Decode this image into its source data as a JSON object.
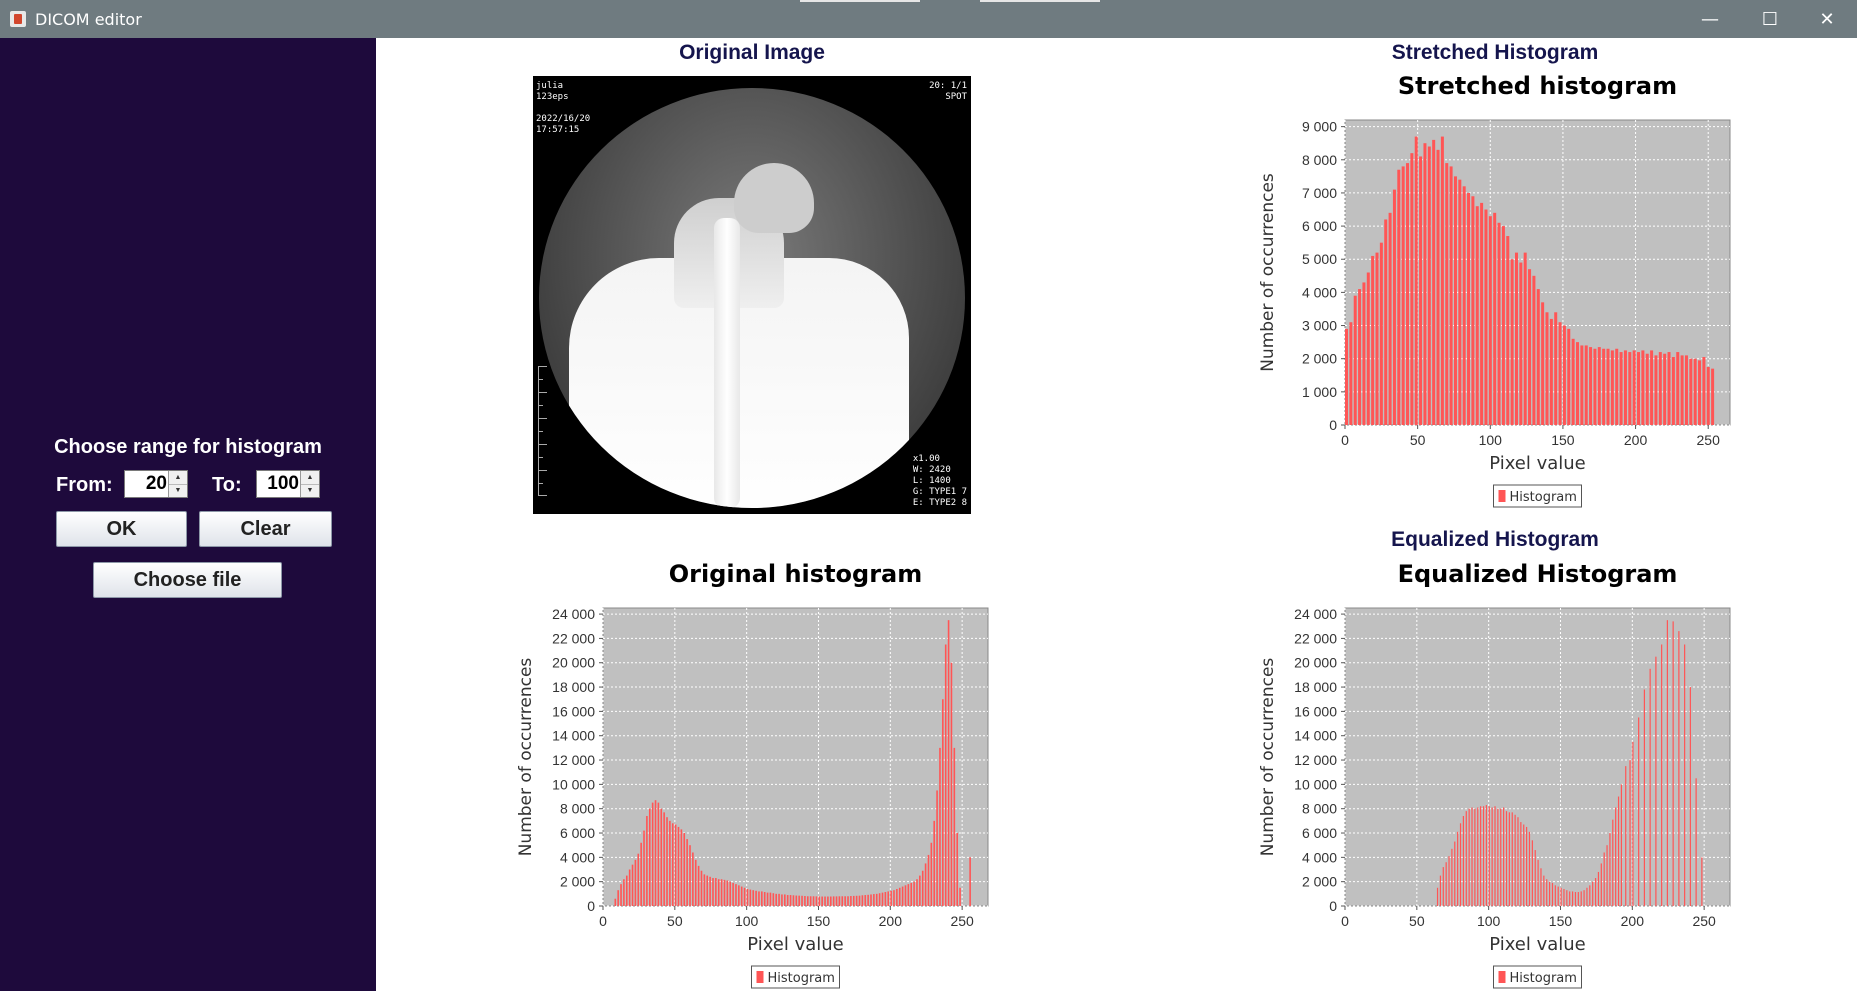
{
  "window": {
    "title": "DICOM editor",
    "minimize_glyph": "—",
    "maximize_glyph": "☐",
    "close_glyph": "✕",
    "icon": "java-cup-icon"
  },
  "sidebar": {
    "range_title": "Choose range for histogram",
    "from_label": "From:",
    "from_value": "20",
    "to_label": "To:",
    "to_value": "100",
    "ok_label": "OK",
    "clear_label": "Clear",
    "choose_file_label": "Choose file",
    "background_color": "#1e0a3c"
  },
  "sections": {
    "original_image": "Original Image",
    "stretched": "Stretched Histogram",
    "equalized": "Equalized Histogram"
  },
  "image": {
    "top_left": "julia\n123eps\n\n2022/16/20\n17:57:15",
    "top_right": "20: 1/1\nSPOT",
    "bottom_right": "x1.00\nW: 2420\nL: 1400\nG: TYPE1 7\nE: TYPE2 8"
  },
  "chart_data": [
    {
      "id": "stretched",
      "type": "bar",
      "title": "Stretched histogram",
      "xlabel": "Pixel value",
      "ylabel": "Number of occurrences",
      "xlim": [
        0,
        265
      ],
      "ylim": [
        0,
        9200
      ],
      "xticks": [
        0,
        50,
        100,
        150,
        200,
        250
      ],
      "xtick_labels": [
        "0",
        "50",
        "100",
        "150",
        "200",
        "250"
      ],
      "yticks": [
        0,
        1000,
        2000,
        3000,
        4000,
        5000,
        6000,
        7000,
        8000,
        9000
      ],
      "ytick_labels": [
        "0",
        "1 000",
        "2 000",
        "3 000",
        "4 000",
        "5 000",
        "6 000",
        "7 000",
        "8 000",
        "9 000"
      ],
      "legend": "Histogram",
      "legend_position": "bottom",
      "grid": true,
      "bar_color": "#ff5555",
      "plot_bg": "#c0c0c0",
      "bar_width": 3,
      "points": [
        [
          0,
          2900
        ],
        [
          3,
          3100
        ],
        [
          6,
          3900
        ],
        [
          9,
          4100
        ],
        [
          12,
          4300
        ],
        [
          15,
          4600
        ],
        [
          18,
          5100
        ],
        [
          21,
          5200
        ],
        [
          24,
          5500
        ],
        [
          27,
          6200
        ],
        [
          30,
          6400
        ],
        [
          33,
          7100
        ],
        [
          36,
          7700
        ],
        [
          39,
          7800
        ],
        [
          42,
          7900
        ],
        [
          45,
          8200
        ],
        [
          48,
          8700
        ],
        [
          51,
          8100
        ],
        [
          54,
          8500
        ],
        [
          57,
          8400
        ],
        [
          60,
          8600
        ],
        [
          63,
          8300
        ],
        [
          66,
          8700
        ],
        [
          69,
          7900
        ],
        [
          72,
          7800
        ],
        [
          75,
          7500
        ],
        [
          78,
          7400
        ],
        [
          81,
          7200
        ],
        [
          84,
          7000
        ],
        [
          87,
          6900
        ],
        [
          90,
          6600
        ],
        [
          93,
          6700
        ],
        [
          96,
          6500
        ],
        [
          99,
          6300
        ],
        [
          102,
          6400
        ],
        [
          105,
          6100
        ],
        [
          108,
          6000
        ],
        [
          111,
          5700
        ],
        [
          114,
          5000
        ],
        [
          117,
          5200
        ],
        [
          120,
          4900
        ],
        [
          123,
          5200
        ],
        [
          126,
          4700
        ],
        [
          129,
          4500
        ],
        [
          132,
          4100
        ],
        [
          135,
          3700
        ],
        [
          138,
          3400
        ],
        [
          141,
          3200
        ],
        [
          144,
          3400
        ],
        [
          147,
          3100
        ],
        [
          150,
          3000
        ],
        [
          153,
          2900
        ],
        [
          156,
          2600
        ],
        [
          159,
          2500
        ],
        [
          162,
          2400
        ],
        [
          165,
          2400
        ],
        [
          168,
          2350
        ],
        [
          171,
          2300
        ],
        [
          174,
          2350
        ],
        [
          177,
          2300
        ],
        [
          180,
          2300
        ],
        [
          183,
          2250
        ],
        [
          186,
          2300
        ],
        [
          189,
          2200
        ],
        [
          192,
          2250
        ],
        [
          195,
          2200
        ],
        [
          198,
          2250
        ],
        [
          201,
          2200
        ],
        [
          204,
          2250
        ],
        [
          207,
          2150
        ],
        [
          210,
          2250
        ],
        [
          213,
          2100
        ],
        [
          216,
          2200
        ],
        [
          219,
          2150
        ],
        [
          222,
          2200
        ],
        [
          225,
          2050
        ],
        [
          228,
          2200
        ],
        [
          231,
          2100
        ],
        [
          234,
          2100
        ],
        [
          237,
          2000
        ],
        [
          240,
          2000
        ],
        [
          243,
          1950
        ],
        [
          246,
          2050
        ],
        [
          249,
          1750
        ],
        [
          252,
          1700
        ]
      ]
    },
    {
      "id": "original",
      "type": "bar",
      "title": "Original histogram",
      "xlabel": "Pixel value",
      "ylabel": "Number of occurrences",
      "xlim": [
        0,
        268
      ],
      "ylim": [
        0,
        24500
      ],
      "xticks": [
        0,
        50,
        100,
        150,
        200,
        250
      ],
      "xtick_labels": [
        "0",
        "50",
        "100",
        "150",
        "200",
        "250"
      ],
      "yticks": [
        0,
        2000,
        4000,
        6000,
        8000,
        10000,
        12000,
        14000,
        16000,
        18000,
        20000,
        22000,
        24000
      ],
      "ytick_labels": [
        "0",
        "2 000",
        "4 000",
        "6 000",
        "8 000",
        "10 000",
        "12 000",
        "14 000",
        "16 000",
        "18 000",
        "20 000",
        "22 000",
        "24 000"
      ],
      "legend": "Histogram",
      "legend_position": "bottom",
      "grid": true,
      "bar_color": "#ff5555",
      "plot_bg": "#c0c0c0",
      "bar_width": 1.6,
      "points": [
        [
          8,
          600
        ],
        [
          10,
          1300
        ],
        [
          12,
          1800
        ],
        [
          14,
          2200
        ],
        [
          16,
          2500
        ],
        [
          18,
          3000
        ],
        [
          20,
          3400
        ],
        [
          22,
          3800
        ],
        [
          24,
          4300
        ],
        [
          26,
          5200
        ],
        [
          28,
          6200
        ],
        [
          30,
          7400
        ],
        [
          32,
          8000
        ],
        [
          34,
          8500
        ],
        [
          36,
          8700
        ],
        [
          38,
          8500
        ],
        [
          40,
          8000
        ],
        [
          42,
          7700
        ],
        [
          44,
          7300
        ],
        [
          46,
          7000
        ],
        [
          48,
          6800
        ],
        [
          50,
          6700
        ],
        [
          52,
          6500
        ],
        [
          54,
          6300
        ],
        [
          56,
          6000
        ],
        [
          58,
          5500
        ],
        [
          60,
          5000
        ],
        [
          62,
          4400
        ],
        [
          64,
          3800
        ],
        [
          66,
          3300
        ],
        [
          68,
          2900
        ],
        [
          70,
          2600
        ],
        [
          72,
          2500
        ],
        [
          74,
          2400
        ],
        [
          76,
          2300
        ],
        [
          78,
          2300
        ],
        [
          80,
          2200
        ],
        [
          82,
          2200
        ],
        [
          84,
          2150
        ],
        [
          86,
          2100
        ],
        [
          88,
          2000
        ],
        [
          90,
          1900
        ],
        [
          92,
          1800
        ],
        [
          94,
          1700
        ],
        [
          96,
          1600
        ],
        [
          98,
          1500
        ],
        [
          100,
          1400
        ],
        [
          102,
          1350
        ],
        [
          104,
          1300
        ],
        [
          106,
          1250
        ],
        [
          108,
          1200
        ],
        [
          110,
          1200
        ],
        [
          112,
          1150
        ],
        [
          114,
          1100
        ],
        [
          116,
          1100
        ],
        [
          118,
          1050
        ],
        [
          120,
          1000
        ],
        [
          122,
          1000
        ],
        [
          124,
          950
        ],
        [
          126,
          950
        ],
        [
          128,
          900
        ],
        [
          130,
          900
        ],
        [
          132,
          880
        ],
        [
          134,
          860
        ],
        [
          136,
          850
        ],
        [
          138,
          840
        ],
        [
          140,
          820
        ],
        [
          142,
          800
        ],
        [
          144,
          800
        ],
        [
          146,
          800
        ],
        [
          148,
          790
        ],
        [
          150,
          780
        ],
        [
          152,
          780
        ],
        [
          154,
          780
        ],
        [
          156,
          780
        ],
        [
          158,
          780
        ],
        [
          160,
          790
        ],
        [
          162,
          790
        ],
        [
          164,
          800
        ],
        [
          166,
          800
        ],
        [
          168,
          800
        ],
        [
          170,
          800
        ],
        [
          172,
          820
        ],
        [
          174,
          830
        ],
        [
          176,
          840
        ],
        [
          178,
          850
        ],
        [
          180,
          880
        ],
        [
          182,
          900
        ],
        [
          184,
          920
        ],
        [
          186,
          950
        ],
        [
          188,
          980
        ],
        [
          190,
          1000
        ],
        [
          192,
          1050
        ],
        [
          194,
          1100
        ],
        [
          196,
          1150
        ],
        [
          198,
          1200
        ],
        [
          200,
          1250
        ],
        [
          202,
          1300
        ],
        [
          204,
          1400
        ],
        [
          206,
          1500
        ],
        [
          208,
          1600
        ],
        [
          210,
          1700
        ],
        [
          212,
          1800
        ],
        [
          214,
          1900
        ],
        [
          216,
          2000
        ],
        [
          218,
          2200
        ],
        [
          220,
          2500
        ],
        [
          222,
          2900
        ],
        [
          224,
          3500
        ],
        [
          226,
          4200
        ],
        [
          228,
          5200
        ],
        [
          230,
          7000
        ],
        [
          232,
          9500
        ],
        [
          234,
          13000
        ],
        [
          236,
          17000
        ],
        [
          238,
          21500
        ],
        [
          240,
          23500
        ],
        [
          242,
          20000
        ],
        [
          244,
          13000
        ],
        [
          246,
          6000
        ],
        [
          248,
          1500
        ],
        [
          255,
          4000
        ]
      ]
    },
    {
      "id": "equalized",
      "type": "bar",
      "title": "Equalized Histogram",
      "xlabel": "Pixel value",
      "ylabel": "Number of occurrences",
      "xlim": [
        0,
        268
      ],
      "ylim": [
        0,
        24500
      ],
      "xticks": [
        0,
        50,
        100,
        150,
        200,
        250
      ],
      "xtick_labels": [
        "0",
        "50",
        "100",
        "150",
        "200",
        "250"
      ],
      "yticks": [
        0,
        2000,
        4000,
        6000,
        8000,
        10000,
        12000,
        14000,
        16000,
        18000,
        20000,
        22000,
        24000
      ],
      "ytick_labels": [
        "0",
        "2 000",
        "4 000",
        "6 000",
        "8 000",
        "10 000",
        "12 000",
        "14 000",
        "16 000",
        "18 000",
        "20 000",
        "22 000",
        "24 000"
      ],
      "legend": "Histogram",
      "legend_position": "bottom",
      "grid": true,
      "bar_color": "#ff5555",
      "plot_bg": "#c0c0c0",
      "bar_width": 1.2,
      "points": [
        [
          64,
          1500
        ],
        [
          66,
          2500
        ],
        [
          68,
          3200
        ],
        [
          70,
          3600
        ],
        [
          72,
          4100
        ],
        [
          74,
          4700
        ],
        [
          76,
          5300
        ],
        [
          78,
          6100
        ],
        [
          80,
          6800
        ],
        [
          82,
          7400
        ],
        [
          84,
          7800
        ],
        [
          86,
          8000
        ],
        [
          88,
          8100
        ],
        [
          90,
          8000
        ],
        [
          92,
          8100
        ],
        [
          94,
          8200
        ],
        [
          96,
          8200
        ],
        [
          98,
          8300
        ],
        [
          100,
          8200
        ],
        [
          102,
          8100
        ],
        [
          104,
          8200
        ],
        [
          106,
          8000
        ],
        [
          108,
          8000
        ],
        [
          110,
          8100
        ],
        [
          112,
          7800
        ],
        [
          114,
          7700
        ],
        [
          116,
          7700
        ],
        [
          118,
          7500
        ],
        [
          120,
          7300
        ],
        [
          122,
          6900
        ],
        [
          124,
          6700
        ],
        [
          126,
          6500
        ],
        [
          128,
          6100
        ],
        [
          130,
          5400
        ],
        [
          132,
          4600
        ],
        [
          134,
          3800
        ],
        [
          136,
          3100
        ],
        [
          138,
          2500
        ],
        [
          140,
          2200
        ],
        [
          142,
          2000
        ],
        [
          144,
          1900
        ],
        [
          146,
          1700
        ],
        [
          148,
          1600
        ],
        [
          150,
          1500
        ],
        [
          152,
          1400
        ],
        [
          154,
          1300
        ],
        [
          156,
          1200
        ],
        [
          158,
          1200
        ],
        [
          160,
          1150
        ],
        [
          162,
          1150
        ],
        [
          164,
          1200
        ],
        [
          166,
          1300
        ],
        [
          168,
          1500
        ],
        [
          170,
          1700
        ],
        [
          172,
          2000
        ],
        [
          174,
          2300
        ],
        [
          176,
          2800
        ],
        [
          178,
          3500
        ],
        [
          180,
          4400
        ],
        [
          182,
          5000
        ],
        [
          184,
          6000
        ],
        [
          186,
          7100
        ],
        [
          188,
          8100
        ],
        [
          190,
          9000
        ],
        [
          192,
          10000
        ],
        [
          195,
          11500
        ],
        [
          198,
          12000
        ],
        [
          200,
          13500
        ],
        [
          204,
          15500
        ],
        [
          208,
          17800
        ],
        [
          212,
          19500
        ],
        [
          216,
          20500
        ],
        [
          220,
          21500
        ],
        [
          224,
          23500
        ],
        [
          228,
          23400
        ],
        [
          232,
          22600
        ],
        [
          236,
          21500
        ],
        [
          240,
          18000
        ],
        [
          244,
          10500
        ],
        [
          248,
          4000
        ]
      ]
    }
  ]
}
